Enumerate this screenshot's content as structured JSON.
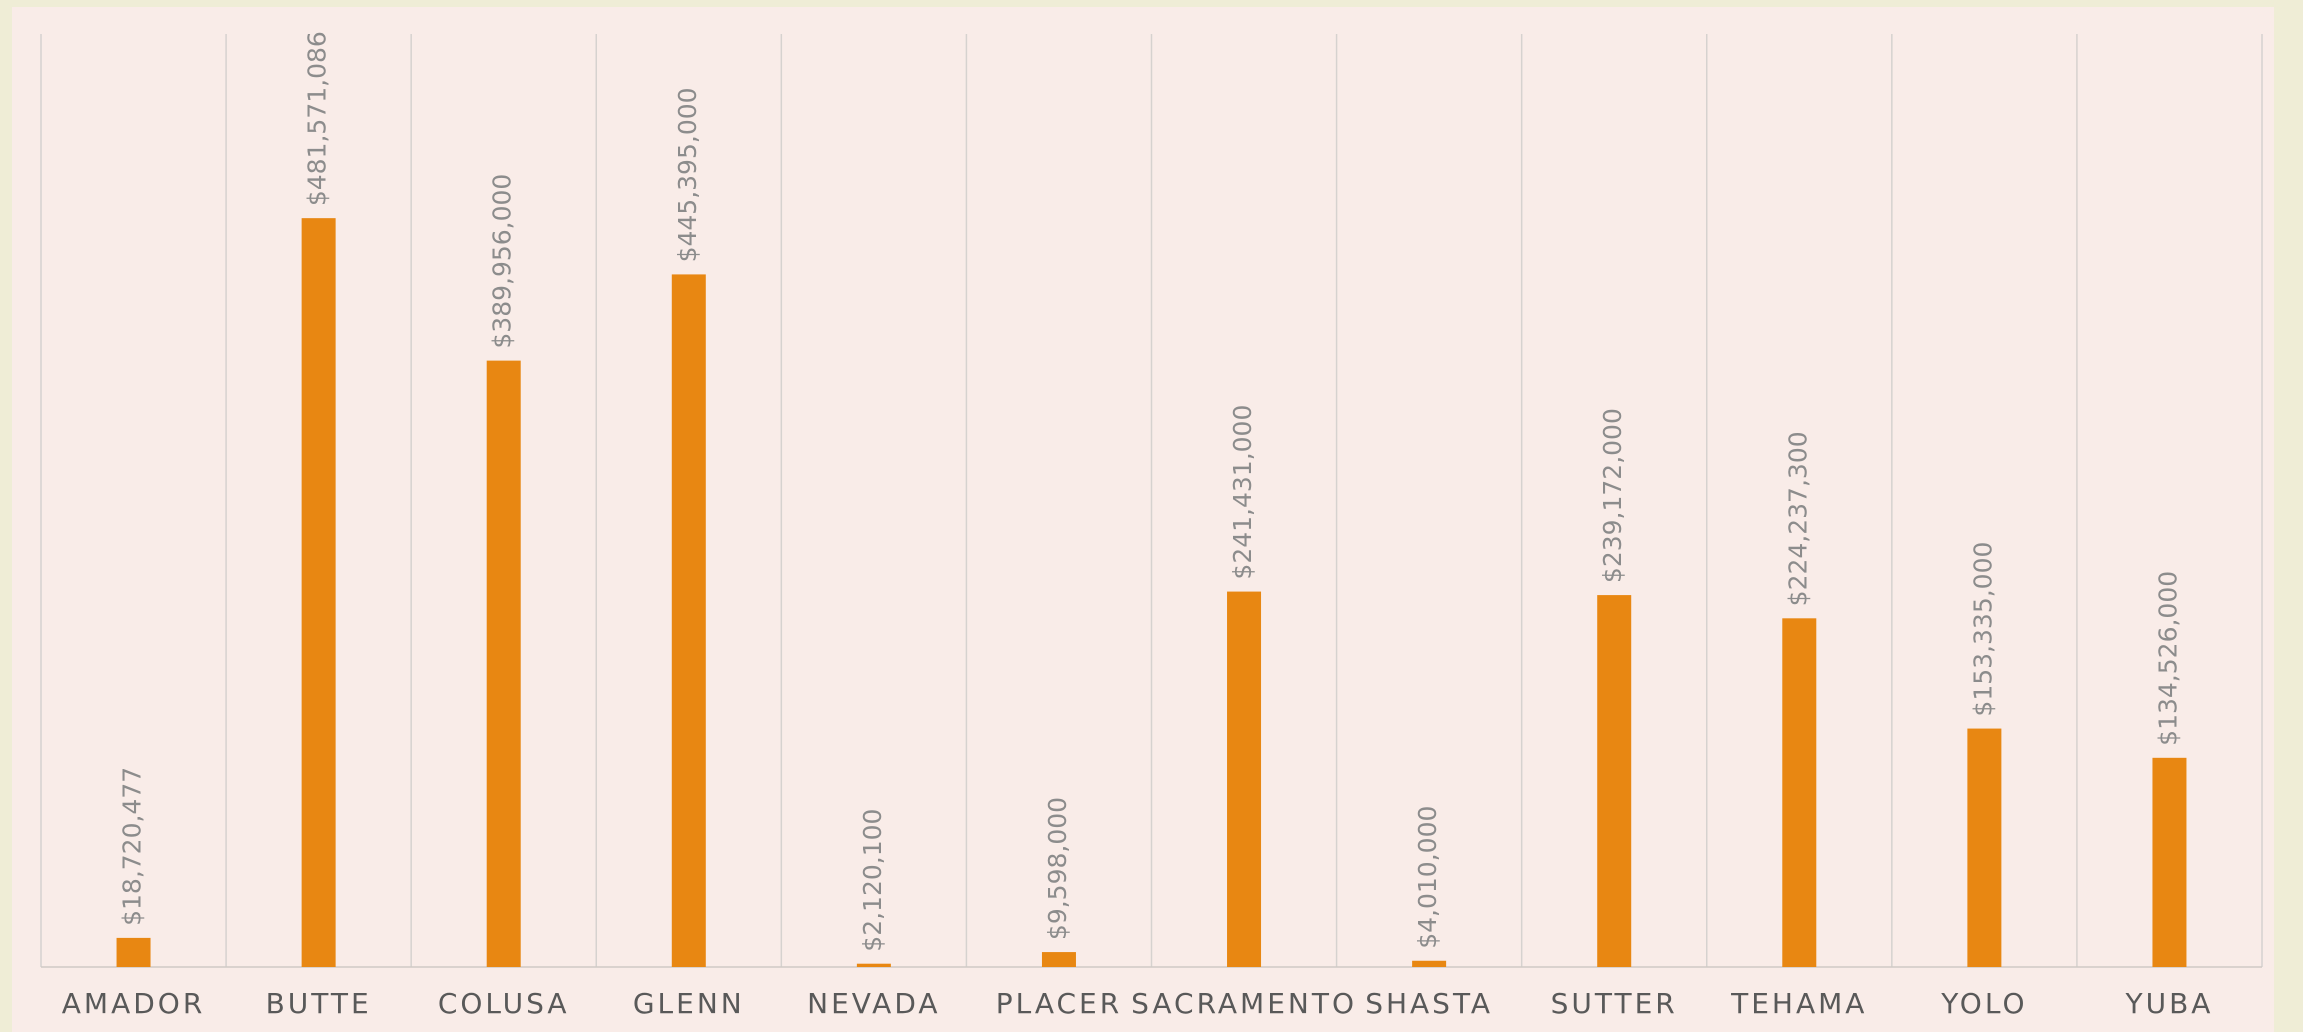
{
  "chart_data": {
    "type": "bar",
    "categories": [
      "AMADOR",
      "BUTTE",
      "COLUSA",
      "GLENN",
      "NEVADA",
      "PLACER",
      "SACRAMENTO",
      "SHASTA",
      "SUTTER",
      "TEHAMA",
      "YOLO",
      "YUBA"
    ],
    "values": [
      18720477,
      481571086,
      389956000,
      445395000,
      2120100,
      9598000,
      241431000,
      4010000,
      239172000,
      224237300,
      153335000,
      134526000
    ],
    "value_labels": [
      "$18,720,477",
      "$481,571,086",
      "$389,956,000",
      "$445,395,000",
      "$2,120,100",
      "$9,598,000",
      "$241,431,000",
      "$4,010,000",
      "$239,172,000",
      "$224,237,300",
      "$153,335,000",
      "$134,526,000"
    ],
    "color": "#e88712",
    "ylim": [
      0,
      600000000
    ]
  }
}
